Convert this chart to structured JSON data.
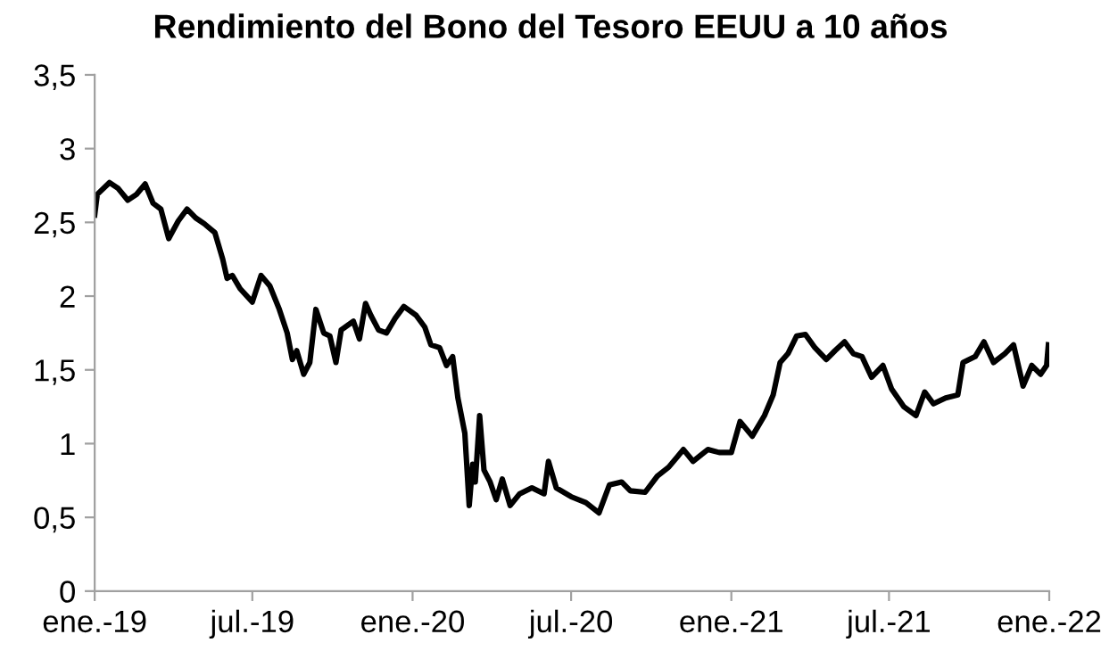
{
  "chart_data": {
    "type": "line",
    "title": "Rendimiento del Bono del Tesoro EEUU a 10 años",
    "x": [
      "2019-01-01",
      "2019-01-04",
      "2019-01-18",
      "2019-01-28",
      "2019-02-08",
      "2019-02-18",
      "2019-02-28",
      "2019-03-09",
      "2019-03-18",
      "2019-03-27",
      "2019-04-07",
      "2019-04-17",
      "2019-04-27",
      "2019-05-07",
      "2019-05-19",
      "2019-05-28",
      "2019-06-02",
      "2019-06-08",
      "2019-06-17",
      "2019-07-01",
      "2019-07-11",
      "2019-07-21",
      "2019-08-01",
      "2019-08-10",
      "2019-08-16",
      "2019-08-21",
      "2019-08-29",
      "2019-09-05",
      "2019-09-12",
      "2019-09-21",
      "2019-09-28",
      "2019-10-05",
      "2019-10-11",
      "2019-10-25",
      "2019-11-01",
      "2019-11-08",
      "2019-11-14",
      "2019-11-23",
      "2019-12-02",
      "2019-12-12",
      "2019-12-22",
      "2020-01-05",
      "2020-01-15",
      "2020-01-22",
      "2020-02-01",
      "2020-02-09",
      "2020-02-16",
      "2020-02-22",
      "2020-03-01",
      "2020-03-06",
      "2020-03-10",
      "2020-03-13",
      "2020-03-18",
      "2020-03-23",
      "2020-03-30",
      "2020-04-06",
      "2020-04-13",
      "2020-04-22",
      "2020-05-03",
      "2020-05-17",
      "2020-05-31",
      "2020-06-05",
      "2020-06-14",
      "2020-07-01",
      "2020-07-18",
      "2020-08-02",
      "2020-08-14",
      "2020-08-28",
      "2020-09-07",
      "2020-09-24",
      "2020-10-08",
      "2020-10-21",
      "2020-11-07",
      "2020-11-18",
      "2020-12-05",
      "2020-12-18",
      "2021-01-01",
      "2021-01-11",
      "2021-01-25",
      "2021-02-08",
      "2021-02-18",
      "2021-02-26",
      "2021-03-07",
      "2021-03-17",
      "2021-03-27",
      "2021-04-07",
      "2021-04-20",
      "2021-04-30",
      "2021-05-11",
      "2021-05-21",
      "2021-05-31",
      "2021-06-11",
      "2021-06-24",
      "2021-07-04",
      "2021-07-18",
      "2021-08-01",
      "2021-08-11",
      "2021-08-21",
      "2021-09-04",
      "2021-09-18",
      "2021-09-24",
      "2021-10-08",
      "2021-10-18",
      "2021-10-29",
      "2021-11-11",
      "2021-11-21",
      "2021-12-02",
      "2021-12-12",
      "2021-12-22",
      "2021-12-29",
      "2021-12-31"
    ],
    "series": [
      {
        "color": "#000000",
        "values": [
          2.55,
          2.69,
          2.77,
          2.73,
          2.65,
          2.69,
          2.76,
          2.63,
          2.59,
          2.39,
          2.51,
          2.59,
          2.53,
          2.49,
          2.43,
          2.25,
          2.12,
          2.14,
          2.05,
          1.96,
          2.14,
          2.07,
          1.91,
          1.75,
          1.57,
          1.63,
          1.47,
          1.55,
          1.91,
          1.75,
          1.73,
          1.55,
          1.77,
          1.83,
          1.71,
          1.95,
          1.87,
          1.77,
          1.75,
          1.85,
          1.93,
          1.87,
          1.79,
          1.67,
          1.65,
          1.53,
          1.59,
          1.31,
          1.07,
          0.58,
          0.86,
          0.74,
          1.19,
          0.82,
          0.74,
          0.62,
          0.76,
          0.58,
          0.66,
          0.7,
          0.66,
          0.88,
          0.7,
          0.64,
          0.6,
          0.53,
          0.72,
          0.74,
          0.68,
          0.67,
          0.78,
          0.84,
          0.96,
          0.88,
          0.96,
          0.94,
          0.94,
          1.15,
          1.05,
          1.19,
          1.33,
          1.55,
          1.61,
          1.73,
          1.74,
          1.65,
          1.57,
          1.63,
          1.69,
          1.61,
          1.59,
          1.45,
          1.53,
          1.37,
          1.25,
          1.19,
          1.35,
          1.27,
          1.31,
          1.33,
          1.55,
          1.59,
          1.69,
          1.55,
          1.61,
          1.67,
          1.39,
          1.53,
          1.47,
          1.53,
          1.67
        ]
      }
    ],
    "xlim": [
      "2019-01-01",
      "2022-01-01"
    ],
    "xticks": [
      {
        "value": "2019-01-01",
        "label": "ene.-19"
      },
      {
        "value": "2019-07-01",
        "label": "jul.-19"
      },
      {
        "value": "2020-01-01",
        "label": "ene.-20"
      },
      {
        "value": "2020-07-01",
        "label": "jul.-20"
      },
      {
        "value": "2021-01-01",
        "label": "ene.-21"
      },
      {
        "value": "2021-07-01",
        "label": "jul.-21"
      },
      {
        "value": "2022-01-01",
        "label": "ene.-22"
      }
    ],
    "ylim": [
      0,
      3.5
    ],
    "yticks": [
      0,
      {
        "value": 0.5,
        "label": "0,5"
      },
      1,
      {
        "value": 1.5,
        "label": "1,5"
      },
      2,
      {
        "value": 2.5,
        "label": "2,5"
      },
      3,
      {
        "value": 3.5,
        "label": "3,5"
      }
    ],
    "grid": false,
    "marker": "none",
    "line_style": "solid"
  }
}
